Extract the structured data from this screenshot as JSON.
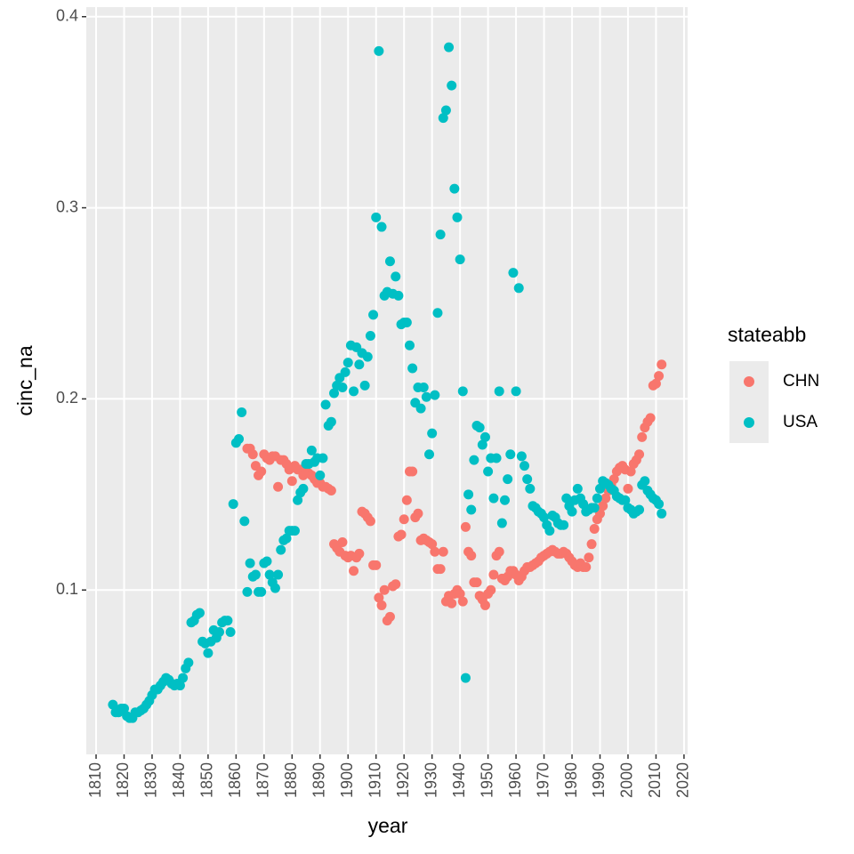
{
  "chart_data": {
    "type": "scatter",
    "x_label": "year",
    "y_label": "cinc_na",
    "legend_title": "stateabb",
    "legend_position": "right",
    "xlim": [
      1806.5,
      2021.3
    ],
    "ylim": [
      0.014,
      0.405
    ],
    "xticks": [
      1810,
      1820,
      1830,
      1840,
      1850,
      1860,
      1870,
      1880,
      1890,
      1900,
      1910,
      1920,
      1930,
      1940,
      1950,
      1960,
      1970,
      1980,
      1990,
      2000,
      2010,
      2020
    ],
    "yticks": [
      0.1,
      0.2,
      0.3,
      0.4
    ],
    "grid": true,
    "x": [
      1816,
      1817,
      1818,
      1819,
      1820,
      1821,
      1822,
      1823,
      1824,
      1825,
      1826,
      1827,
      1828,
      1829,
      1830,
      1831,
      1832,
      1833,
      1834,
      1835,
      1836,
      1837,
      1838,
      1839,
      1840,
      1841,
      1842,
      1843,
      1844,
      1845,
      1846,
      1847,
      1848,
      1849,
      1850,
      1851,
      1852,
      1853,
      1854,
      1855,
      1856,
      1857,
      1858,
      1859,
      1860,
      1861,
      1862,
      1863,
      1864,
      1865,
      1866,
      1867,
      1868,
      1869,
      1870,
      1871,
      1872,
      1873,
      1874,
      1875,
      1876,
      1877,
      1878,
      1879,
      1880,
      1881,
      1882,
      1883,
      1884,
      1885,
      1886,
      1887,
      1888,
      1889,
      1890,
      1891,
      1892,
      1893,
      1894,
      1895,
      1896,
      1897,
      1898,
      1899,
      1900,
      1901,
      1902,
      1903,
      1904,
      1905,
      1906,
      1907,
      1908,
      1909,
      1910,
      1911,
      1912,
      1913,
      1914,
      1915,
      1916,
      1917,
      1918,
      1919,
      1920,
      1921,
      1922,
      1923,
      1924,
      1925,
      1926,
      1927,
      1928,
      1929,
      1930,
      1931,
      1932,
      1933,
      1934,
      1935,
      1936,
      1937,
      1938,
      1939,
      1940,
      1941,
      1942,
      1943,
      1944,
      1945,
      1946,
      1947,
      1948,
      1949,
      1950,
      1951,
      1952,
      1953,
      1954,
      1955,
      1956,
      1957,
      1958,
      1959,
      1960,
      1961,
      1962,
      1963,
      1964,
      1965,
      1966,
      1967,
      1968,
      1969,
      1970,
      1971,
      1972,
      1973,
      1974,
      1975,
      1976,
      1977,
      1978,
      1979,
      1980,
      1981,
      1982,
      1983,
      1984,
      1985,
      1986,
      1987,
      1988,
      1989,
      1990,
      1991,
      1992,
      1993,
      1994,
      1995,
      1996,
      1997,
      1998,
      1999,
      2000,
      2001,
      2002,
      2003,
      2004,
      2005,
      2006,
      2007,
      2008,
      2009,
      2010,
      2011,
      2012
    ],
    "series": [
      {
        "name": "CHN",
        "color": "#F8766D",
        "values": [
          null,
          null,
          null,
          null,
          null,
          null,
          null,
          null,
          null,
          null,
          null,
          null,
          null,
          null,
          null,
          null,
          null,
          null,
          null,
          null,
          null,
          null,
          null,
          null,
          null,
          null,
          null,
          null,
          null,
          null,
          null,
          null,
          null,
          null,
          null,
          null,
          null,
          null,
          null,
          null,
          null,
          null,
          null,
          null,
          null,
          null,
          null,
          null,
          0.174,
          0.174,
          0.171,
          0.165,
          0.16,
          0.162,
          0.171,
          0.169,
          0.168,
          0.17,
          0.17,
          0.154,
          0.168,
          0.168,
          0.166,
          0.163,
          0.157,
          0.165,
          0.163,
          0.163,
          0.16,
          0.162,
          0.161,
          0.16,
          0.158,
          0.156,
          0.156,
          0.154,
          0.154,
          0.153,
          0.152,
          0.124,
          0.122,
          0.12,
          0.125,
          0.118,
          0.117,
          0.118,
          0.11,
          0.117,
          0.119,
          0.141,
          0.14,
          0.138,
          0.136,
          0.113,
          0.113,
          0.096,
          0.092,
          0.1,
          0.084,
          0.086,
          0.102,
          0.103,
          0.128,
          0.129,
          0.137,
          0.147,
          0.162,
          0.162,
          0.138,
          0.14,
          0.126,
          0.127,
          0.126,
          0.125,
          0.124,
          0.12,
          0.111,
          0.111,
          0.12,
          0.094,
          0.097,
          0.093,
          0.098,
          0.1,
          0.098,
          0.094,
          0.133,
          0.12,
          0.118,
          0.104,
          0.104,
          0.097,
          0.095,
          0.092,
          0.098,
          0.1,
          0.108,
          0.118,
          0.12,
          0.106,
          0.105,
          0.107,
          0.11,
          0.11,
          0.108,
          0.105,
          0.107,
          0.11,
          0.112,
          0.112,
          0.113,
          0.114,
          0.115,
          0.117,
          0.118,
          0.119,
          0.12,
          0.121,
          0.12,
          0.119,
          0.119,
          0.12,
          0.119,
          0.117,
          0.115,
          0.113,
          0.112,
          0.114,
          0.112,
          0.112,
          0.117,
          0.124,
          0.132,
          0.137,
          0.14,
          0.144,
          0.148,
          0.152,
          0.155,
          0.158,
          0.162,
          0.164,
          0.165,
          0.163,
          0.153,
          0.162,
          0.166,
          0.168,
          0.171,
          0.18,
          0.185,
          0.188,
          0.19,
          0.207,
          0.208,
          0.212,
          0.218
        ]
      },
      {
        "name": "USA",
        "color": "#00BFC4",
        "values": [
          0.04,
          0.036,
          0.036,
          0.038,
          0.038,
          0.034,
          0.033,
          0.033,
          0.036,
          0.036,
          0.037,
          0.038,
          0.04,
          0.042,
          0.045,
          0.048,
          0.048,
          0.05,
          0.052,
          0.054,
          0.053,
          0.051,
          0.05,
          0.051,
          0.05,
          0.054,
          0.059,
          0.062,
          0.083,
          0.084,
          0.087,
          0.088,
          0.073,
          0.072,
          0.067,
          0.073,
          0.079,
          0.075,
          0.078,
          0.083,
          0.084,
          0.084,
          0.078,
          0.145,
          0.177,
          0.179,
          0.193,
          0.136,
          0.099,
          0.114,
          0.107,
          0.108,
          0.099,
          0.099,
          0.114,
          0.115,
          0.108,
          0.104,
          0.101,
          0.108,
          0.121,
          0.126,
          0.127,
          0.131,
          0.131,
          0.131,
          0.147,
          0.151,
          0.153,
          0.166,
          0.166,
          0.173,
          0.167,
          0.169,
          0.16,
          0.169,
          0.197,
          0.186,
          0.188,
          0.203,
          0.207,
          0.211,
          0.206,
          0.214,
          0.219,
          0.228,
          0.204,
          0.227,
          0.218,
          0.224,
          0.207,
          0.222,
          0.233,
          0.244,
          0.295,
          0.382,
          0.29,
          0.254,
          0.256,
          0.272,
          0.255,
          0.264,
          0.254,
          0.239,
          0.24,
          0.24,
          0.228,
          0.216,
          0.198,
          0.206,
          0.195,
          0.206,
          0.201,
          0.171,
          0.182,
          0.202,
          0.245,
          0.286,
          0.347,
          0.351,
          0.384,
          0.364,
          0.31,
          0.295,
          0.273,
          0.204,
          0.054,
          0.15,
          0.142,
          0.168,
          0.186,
          0.185,
          0.176,
          0.18,
          0.162,
          0.169,
          0.148,
          0.169,
          0.204,
          0.135,
          0.147,
          0.158,
          0.171,
          0.266,
          0.204,
          0.258,
          0.17,
          0.165,
          0.158,
          0.153,
          0.144,
          0.143,
          0.141,
          0.14,
          0.138,
          0.134,
          0.131,
          0.139,
          0.138,
          0.135,
          0.134,
          0.134,
          0.148,
          0.144,
          0.141,
          0.147,
          0.153,
          0.148,
          0.145,
          0.141,
          0.142,
          0.143,
          0.143,
          0.148,
          0.153,
          0.157,
          0.156,
          0.155,
          0.153,
          0.152,
          0.149,
          0.148,
          0.147,
          0.147,
          0.143,
          0.142,
          0.14,
          0.141,
          0.142,
          0.155,
          0.157,
          0.152,
          0.15,
          0.148,
          0.147,
          0.145,
          0.14
        ]
      }
    ]
  }
}
